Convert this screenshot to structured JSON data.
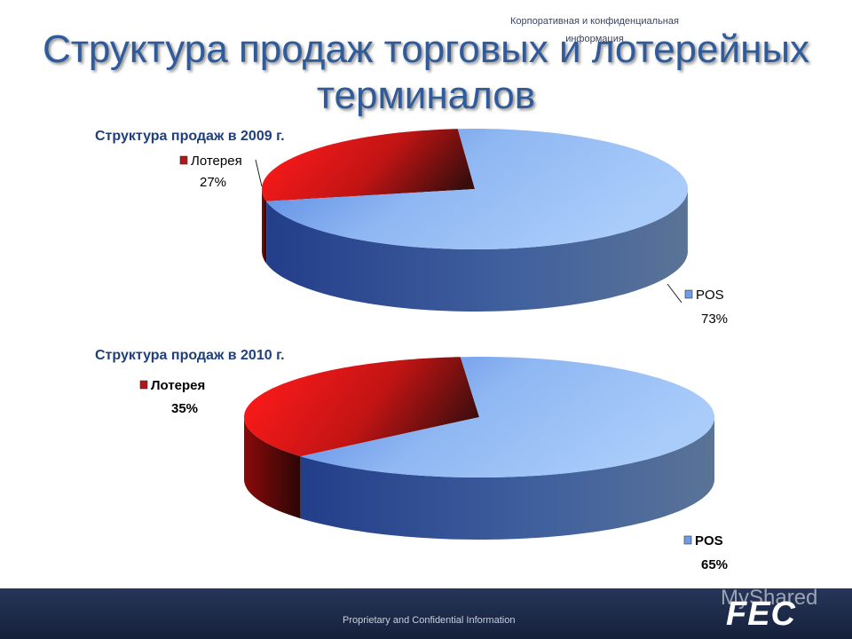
{
  "title": "Структура продаж торговых и лотерейных терминалов",
  "footer": {
    "left_text": "Proprietary and Confidential Information",
    "right_text": "Корпоративная и конфиденциальная информация",
    "watermark": "MyShared",
    "logo": "FEC"
  },
  "colors": {
    "pos": "#8ab4f0",
    "lottery": "#e01818",
    "title": "#2f5b9a",
    "footer": "#1d2a48"
  },
  "chart_data": [
    {
      "type": "pie",
      "title": "Структура продаж в 2009 г.",
      "slices": [
        {
          "label": "Лотерея",
          "value": 27,
          "value_label": "27%"
        },
        {
          "label": "POS",
          "value": 73,
          "value_label": "73%"
        }
      ]
    },
    {
      "type": "pie",
      "title": "Структура продаж в 2010 г.",
      "slices": [
        {
          "label": "Лотерея",
          "value": 35,
          "value_label": "35%"
        },
        {
          "label": "POS",
          "value": 65,
          "value_label": "65%"
        }
      ]
    }
  ]
}
